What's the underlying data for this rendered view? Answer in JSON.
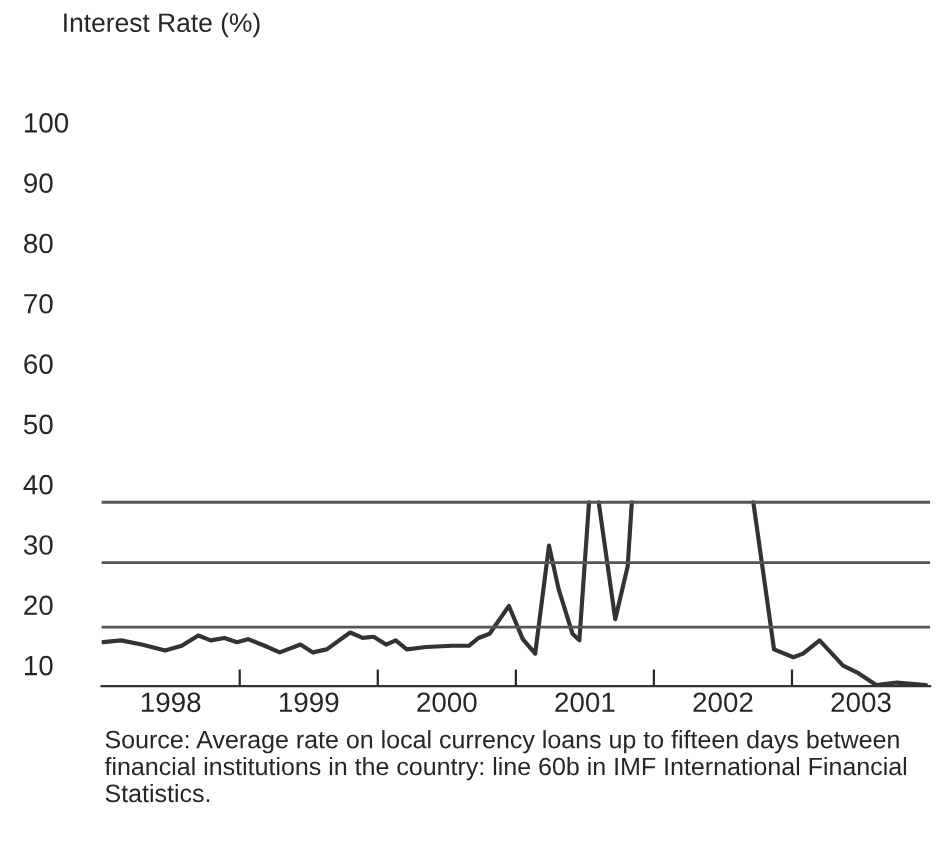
{
  "chart_data": {
    "type": "line",
    "ylabel": "Interest Rate (%)",
    "x": [
      1998.01,
      1998.14,
      1998.29,
      1998.46,
      1998.58,
      1998.7,
      1998.79,
      1998.89,
      1998.98,
      1999.06,
      1999.18,
      1999.29,
      1999.44,
      1999.53,
      1999.63,
      1999.8,
      1999.89,
      1999.97,
      2000.06,
      2000.13,
      2000.21,
      2000.35,
      2000.54,
      2000.66,
      2000.73,
      2000.81,
      2000.95,
      2001.05,
      2001.14,
      2001.24,
      2001.31,
      2001.41,
      2001.46,
      2001.53,
      2001.56,
      2001.6,
      2001.72,
      2001.81,
      2001.84,
      2002.2,
      2002.72,
      2002.87,
      2003.01,
      2003.08,
      2003.2,
      2003.37,
      2003.47,
      2003.61,
      2003.76,
      2003.97
    ],
    "series": [
      {
        "color": "#333333",
        "values": [
          13.8,
          14.1,
          13.4,
          12.4,
          13.2,
          14.9,
          14.1,
          14.5,
          13.8,
          14.3,
          13.2,
          12.1,
          13.4,
          12.1,
          12.6,
          15.4,
          14.5,
          14.7,
          13.4,
          14.1,
          12.6,
          13.0,
          13.2,
          13.2,
          14.5,
          15.2,
          19.8,
          14.3,
          11.9,
          29.8,
          22.6,
          15.2,
          14.1,
          37,
          null,
          37,
          17.6,
          26.4,
          37,
          null,
          37,
          12.6,
          11.3,
          11.9,
          14.1,
          9.9,
          8.8,
          6.7,
          7.1,
          6.7
        ]
      }
    ],
    "xlim": [
      1998,
      2004
    ],
    "xticks": [
      {
        "value": 1998.5,
        "label": "1998"
      },
      {
        "value": 1999,
        "label": null
      },
      {
        "value": 1999.5,
        "label": "1999"
      },
      {
        "value": 2000,
        "label": null
      },
      {
        "value": 2000.5,
        "label": "2000"
      },
      {
        "value": 2001,
        "label": null
      },
      {
        "value": 2001.5,
        "label": "2001"
      },
      {
        "value": 2002,
        "label": null
      },
      {
        "value": 2002.5,
        "label": "2002"
      },
      {
        "value": 2003,
        "label": null
      },
      {
        "value": 2003.5,
        "label": "2003"
      }
    ],
    "ylim": [
      6.5,
      100
    ],
    "yticks": [
      10,
      20,
      30,
      40,
      50,
      60,
      70,
      80,
      90,
      100
    ],
    "ref_lines": [
      {
        "axis": "y",
        "value": 16.3
      },
      {
        "axis": "y",
        "value": 27
      },
      {
        "axis": "y",
        "value": 37
      }
    ],
    "grid": false,
    "legend": false,
    "annotations": [
      "Source: Average rate on local currency loans up to fifteen days between financial institutions in the country: line 60b in IMF International Financial Statistics."
    ]
  }
}
